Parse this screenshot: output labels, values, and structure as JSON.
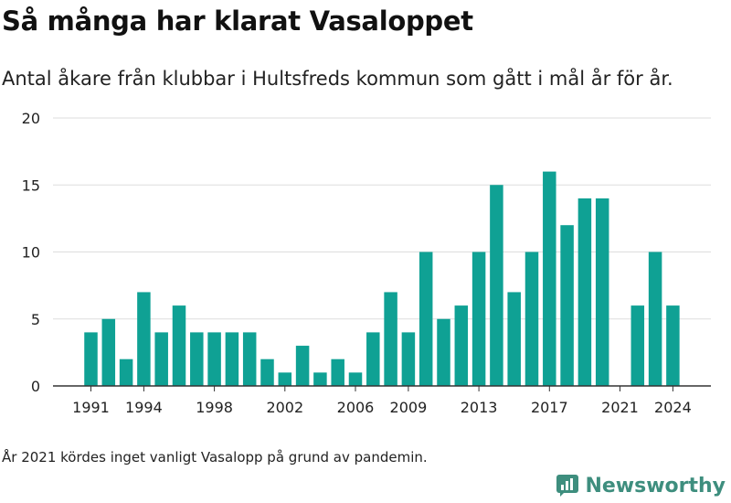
{
  "header": {
    "title": "Så många har klarat Vasaloppet",
    "subtitle": "Antal åkare från klubbar i Hultsfreds kommun som gått i mål år för år."
  },
  "footer": {
    "note": "År 2021 kördes inget vanligt Vasalopp på grund av pandemin.",
    "brand": "Newsworthy"
  },
  "colors": {
    "bar": "#0fa194",
    "grid": "#dddddd",
    "axis": "#333333",
    "brand": "#3e8e7e"
  },
  "chart_data": {
    "type": "bar",
    "categories": [
      "1991",
      "1992",
      "1993",
      "1994",
      "1995",
      "1996",
      "1997",
      "1998",
      "1999",
      "2000",
      "2001",
      "2002",
      "2003",
      "2004",
      "2005",
      "2006",
      "2007",
      "2008",
      "2009",
      "2010",
      "2011",
      "2012",
      "2013",
      "2014",
      "2015",
      "2016",
      "2017",
      "2018",
      "2019",
      "2020",
      "2021",
      "2022",
      "2023",
      "2024"
    ],
    "values": [
      4,
      5,
      2,
      7,
      4,
      6,
      4,
      4,
      4,
      4,
      2,
      1,
      3,
      1,
      2,
      1,
      4,
      7,
      4,
      10,
      5,
      6,
      10,
      15,
      7,
      10,
      16,
      12,
      14,
      14,
      null,
      6,
      10,
      6
    ],
    "x_tick_labels": [
      "1991",
      "1994",
      "1998",
      "2002",
      "2006",
      "2009",
      "2013",
      "2017",
      "2021",
      "2024"
    ],
    "y_ticks": [
      0,
      5,
      10,
      15,
      20
    ],
    "ylim": [
      0,
      20
    ],
    "grid": true,
    "legend": "none"
  }
}
